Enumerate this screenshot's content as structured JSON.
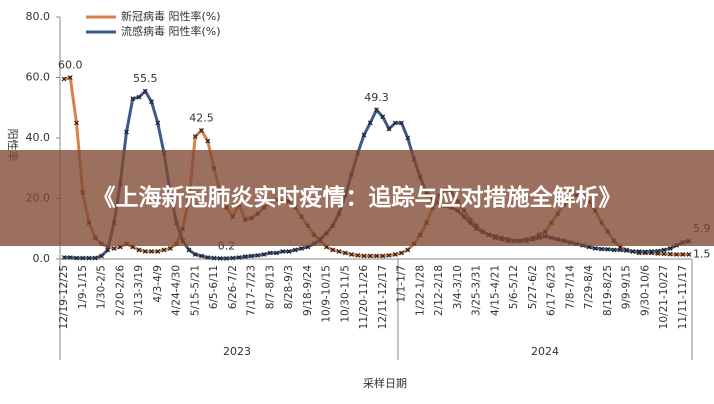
{
  "overlay_title": "《上海新冠肺炎实时疫情：追踪与应对措施全解析》",
  "chart_data": {
    "type": "line",
    "x_label": "采样日期",
    "y_label": "阳性率",
    "year_groups": [
      "2023",
      "2024"
    ],
    "categories": [
      "12/19-12/25",
      null,
      null,
      "1/9-1/15",
      null,
      null,
      "1/30-2/5",
      null,
      null,
      "2/20-2/26",
      null,
      null,
      "3/13-3/19",
      null,
      null,
      "4/3-4/9",
      null,
      null,
      "4/24-4/30",
      null,
      null,
      "5/15-5/21",
      null,
      null,
      "6/5-6/11",
      null,
      null,
      "6/26-7/2",
      null,
      null,
      "7/17-7/23",
      null,
      null,
      "8/7-8/13",
      null,
      null,
      "8/28-9/3",
      null,
      null,
      "9/18-9/24",
      null,
      null,
      "10/9-10/15",
      null,
      null,
      "10/30-11/5",
      null,
      null,
      "11/20-11/26",
      null,
      null,
      "12/11-12/17",
      null,
      null,
      "1/1-1/7",
      null,
      null,
      "1/22-1/28",
      null,
      null,
      "2/12-2/18",
      null,
      null,
      "3/4-3/10",
      null,
      null,
      "3/25-3/31",
      null,
      null,
      "4/15-4/21",
      null,
      null,
      "5/6-5/12",
      null,
      null,
      "5/27-6/2",
      null,
      null,
      "6/17-6/23",
      null,
      null,
      "7/8-7/14",
      null,
      null,
      "7/29-8/4",
      null,
      null,
      "8/19-8/25",
      null,
      null,
      "9/9-9/15",
      null,
      null,
      "9/30-10/6",
      null,
      null,
      "10/21-10/27",
      null,
      null,
      "11/11-11/17",
      null
    ],
    "series": [
      {
        "name": "新冠病毒 阳性率(%)",
        "color": "#d9804a",
        "values": [
          59.5,
          60,
          45,
          22,
          12,
          7,
          5,
          4,
          3.5,
          4,
          5,
          4,
          3,
          2.5,
          2.5,
          2.5,
          3,
          3.5,
          5,
          10,
          20,
          40.5,
          42.5,
          39,
          30,
          22,
          17,
          14,
          18,
          13,
          13.5,
          15,
          17,
          19,
          19.5,
          19,
          19,
          17,
          14,
          11,
          8,
          6,
          4,
          3,
          2.5,
          2,
          1.5,
          1.2,
          1,
          1,
          1,
          1,
          1.2,
          1.5,
          2,
          3,
          5,
          8,
          12,
          17,
          21,
          23,
          22,
          19,
          16,
          13,
          11,
          9,
          8,
          7,
          6.5,
          6,
          6,
          6,
          6.5,
          7,
          8,
          9,
          12,
          15,
          18,
          20,
          21,
          20.5,
          19,
          16,
          12,
          9,
          6,
          4,
          3,
          2.5,
          2,
          2,
          2,
          1.8,
          1.7,
          1.6,
          1.5,
          1.5,
          1.5
        ],
        "value_labels": [
          null,
          "60.0",
          null,
          null,
          null,
          null,
          null,
          null,
          null,
          null,
          null,
          null,
          null,
          null,
          null,
          null,
          null,
          null,
          null,
          null,
          null,
          null,
          "42.5",
          null,
          null,
          null,
          null,
          null,
          null,
          null,
          null,
          null,
          null,
          null,
          null,
          null,
          null,
          null,
          null,
          null,
          null,
          null,
          null,
          null,
          null,
          null,
          null,
          null,
          null,
          null,
          null,
          null,
          null,
          null,
          null,
          null,
          null,
          null,
          null,
          null,
          null,
          null,
          null,
          null,
          null,
          null,
          null,
          null,
          null,
          null,
          null,
          null,
          null,
          null,
          null,
          null,
          null,
          null,
          null,
          null,
          null,
          null,
          null,
          null,
          null,
          null,
          null,
          null,
          null,
          null,
          null,
          null,
          null,
          null,
          null,
          null,
          null,
          null,
          null,
          null,
          "1.5"
        ]
      },
      {
        "name": "流感病毒 阳性率(%)",
        "color": "#3d5a8c",
        "values": [
          0.5,
          0.5,
          0.3,
          0.3,
          0.3,
          0.3,
          1,
          3,
          12,
          25,
          42,
          53,
          53.5,
          55.5,
          52,
          45,
          35,
          22,
          12,
          6,
          3,
          1.5,
          1,
          0.5,
          0.3,
          0.2,
          0.2,
          0.3,
          0.5,
          0.8,
          1,
          1.2,
          1.5,
          2,
          2,
          2.5,
          2.5,
          3,
          3.5,
          4,
          5,
          6.5,
          8.5,
          11,
          15,
          21,
          28,
          35,
          41,
          45,
          49.3,
          47,
          43,
          45,
          45,
          40,
          33,
          27,
          22,
          20,
          18,
          17.5,
          17,
          16,
          14,
          12,
          10,
          9,
          8,
          7.5,
          7,
          6.5,
          6,
          6,
          6,
          6.5,
          7,
          7.5,
          7,
          6.5,
          6,
          5.5,
          5,
          4.5,
          4,
          3.5,
          3.3,
          3.2,
          3,
          3,
          2.8,
          2.5,
          2.5,
          2.4,
          2.5,
          2.6,
          3,
          3.5,
          4.5,
          5.5,
          5.9
        ],
        "value_labels": [
          null,
          null,
          null,
          null,
          null,
          null,
          null,
          null,
          null,
          null,
          null,
          null,
          null,
          "55.5",
          null,
          null,
          null,
          null,
          null,
          null,
          null,
          null,
          null,
          null,
          null,
          null,
          "0.2",
          null,
          null,
          null,
          null,
          null,
          null,
          null,
          null,
          null,
          null,
          null,
          null,
          null,
          null,
          null,
          null,
          null,
          null,
          null,
          null,
          null,
          null,
          null,
          "49.3",
          null,
          null,
          null,
          null,
          null,
          null,
          null,
          null,
          null,
          null,
          null,
          null,
          null,
          null,
          null,
          null,
          null,
          null,
          null,
          null,
          null,
          null,
          null,
          null,
          null,
          null,
          null,
          null,
          null,
          null,
          null,
          null,
          null,
          null,
          null,
          null,
          null,
          null,
          null,
          null,
          null,
          null,
          null,
          null,
          null,
          null,
          null,
          null,
          null,
          "5.9"
        ]
      }
    ],
    "ylim": [
      0,
      80
    ],
    "yticks": [
      {
        "value": 0,
        "label": "0.0"
      },
      {
        "value": 20,
        "label": "20.0"
      },
      {
        "value": 40,
        "label": "40.0"
      },
      {
        "value": 60,
        "label": "60.0"
      },
      {
        "value": 80,
        "label": "80.0"
      }
    ],
    "grid": false,
    "legend": "top-left",
    "marker": "x"
  }
}
